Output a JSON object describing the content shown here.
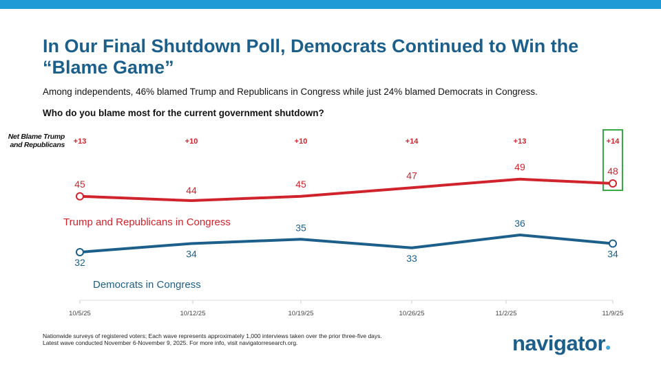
{
  "title": "In Our Final Shutdown Poll, Democrats Continued to Win the “Blame Game”",
  "subtitle": "Among independents, 46% blamed Trump and Republicans in Congress while just 24% blamed Democrats in Congress.",
  "question": "Who do you blame most for the current government shutdown?",
  "footnote": [
    "Nationwide surveys of registered voters; Each wave represents approximately 1,000 interviews taken over the prior three-five days.",
    "Latest wave conducted November 6-November 9, 2025. For more info, visit navigatorresearch.org."
  ],
  "logo": "navigator",
  "colors": {
    "republicans": "#d0232c",
    "democrats": "#1b5f8a",
    "highlight": "#3aa845",
    "accent": "#1f9ad6"
  },
  "chart_data": {
    "type": "line",
    "categories": [
      "10/5/25",
      "10/12/25",
      "10/19/25",
      "10/26/25",
      "11/2/25",
      "11/9/25"
    ],
    "net_label": "Net Blame Trump and Republicans",
    "net": [
      "+13",
      "+10",
      "+10",
      "+14",
      "+13",
      "+14"
    ],
    "series": [
      {
        "name": "Trump and Republicans in Congress",
        "values": [
          45,
          44,
          45,
          47,
          49,
          48
        ]
      },
      {
        "name": "Democrats in Congress",
        "values": [
          32,
          34,
          35,
          33,
          36,
          34
        ]
      }
    ],
    "highlight": "11/9/25",
    "grid": false
  }
}
